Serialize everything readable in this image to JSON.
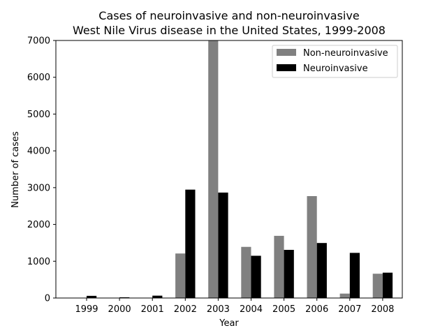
{
  "chart_data": {
    "type": "bar",
    "title": "Cases of neuroinvasive and non-neuroinvasive",
    "subtitle": "West Nile Virus disease in the United States, 1999-2008",
    "xlabel": "Year",
    "ylabel": "Number of cases",
    "categories": [
      "1999",
      "2000",
      "2001",
      "2002",
      "2003",
      "2004",
      "2005",
      "2006",
      "2007",
      "2008"
    ],
    "series": [
      {
        "name": "Non-neuroinvasive",
        "color": "#808080",
        "values": [
          0,
          2,
          0,
          1210,
          7000,
          1390,
          1690,
          2770,
          120,
          660
        ]
      },
      {
        "name": "Neuroinvasive",
        "color": "#000000",
        "values": [
          59,
          19,
          64,
          2946,
          2866,
          1148,
          1309,
          1495,
          1227,
          689
        ]
      }
    ],
    "ylim": [
      0,
      7000
    ],
    "yticks": [
      0,
      1000,
      2000,
      3000,
      4000,
      5000,
      6000,
      7000
    ],
    "grid": false,
    "legend_position": "top-right"
  }
}
